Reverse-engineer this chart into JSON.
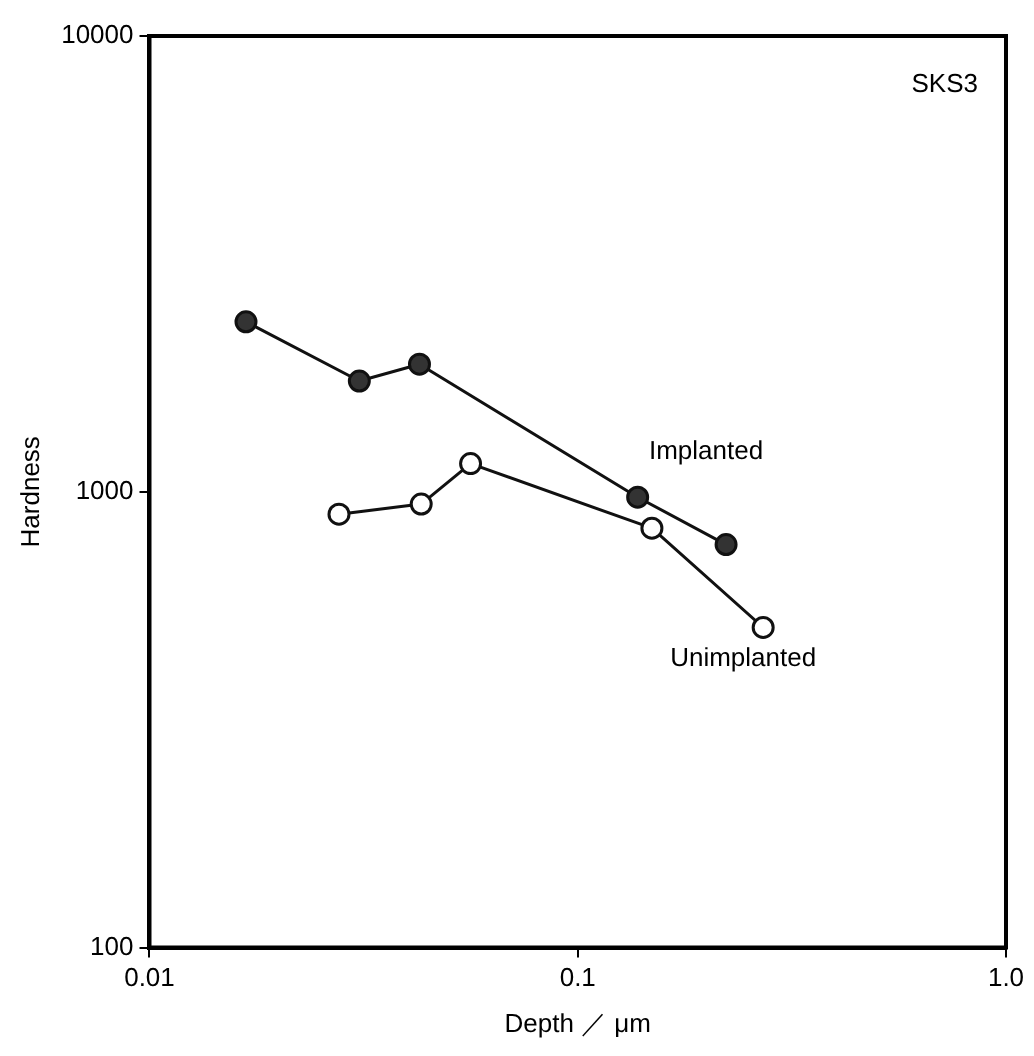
{
  "chart_data": {
    "type": "line",
    "xlabel": "Depth ／ μm",
    "ylabel": "Hardness",
    "log": "xy",
    "xlim": [
      0.01,
      1
    ],
    "xticks": [
      0.01,
      0.1,
      {
        "value": 1,
        "label": "1.0"
      }
    ],
    "ylim": [
      100,
      10000
    ],
    "yticks": [
      100,
      1000,
      10000
    ],
    "grid": false,
    "legend": false,
    "marker": "circle",
    "line_style": "solid",
    "annotations": [
      "SKS3"
    ],
    "series": [
      {
        "name": "Implanted",
        "color": "#333333",
        "x": [
          0.0168,
          0.0309,
          0.0427,
          0.138,
          0.222
        ],
        "values": [
          2360,
          1750,
          1905,
          973,
          766
        ]
      },
      {
        "name": "Unimplanted",
        "color": "#ffffff",
        "x": [
          0.0277,
          0.0431,
          0.0562,
          0.149,
          0.271
        ],
        "values": [
          893,
          940,
          1153,
          832,
          504
        ]
      }
    ]
  }
}
